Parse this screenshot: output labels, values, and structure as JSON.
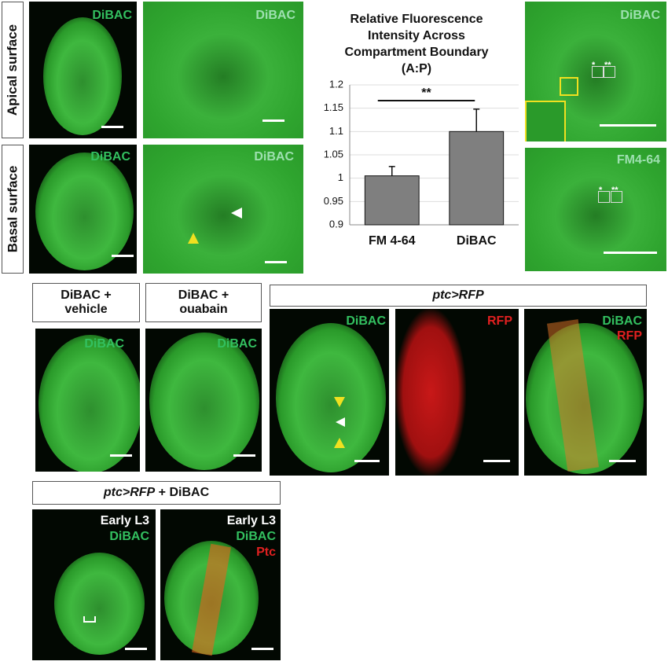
{
  "row_labels": [
    "Apical surface",
    "Basal surface"
  ],
  "image_labels": [
    "DiBAC",
    "DiBAC",
    "DiBAC",
    "DiBAC",
    "DiBAC",
    "FM4-64",
    "DiBAC",
    "DiBAC",
    "DiBAC",
    "RFP",
    "DiBAC",
    "RFP",
    "Early L3",
    "DiBAC",
    "Early L3",
    "DiBAC",
    "Ptc"
  ],
  "inset_marks": [
    "*",
    "**",
    "*",
    "**"
  ],
  "condition_labels": [
    "DiBAC + vehicle",
    "DiBAC + ouabain",
    "ptc>RFP"
  ],
  "ptc_rfp_dibac": [
    "ptc>RFP",
    "+ DiBAC"
  ],
  "chart_data": {
    "type": "bar",
    "title": "Relative Fluorescence Intensity Across Compartment Boundary (A:P)",
    "categories": [
      "FM 4-64",
      "DiBAC"
    ],
    "values": [
      1.005,
      1.1
    ],
    "errors": [
      0.02,
      0.048
    ],
    "color": "#7f7f7f",
    "ylim": [
      0.9,
      1.2
    ],
    "yticks": [
      0.9,
      0.95,
      1,
      1.05,
      1.1,
      1.15,
      1.2
    ],
    "grid": true,
    "annotation": "**"
  }
}
